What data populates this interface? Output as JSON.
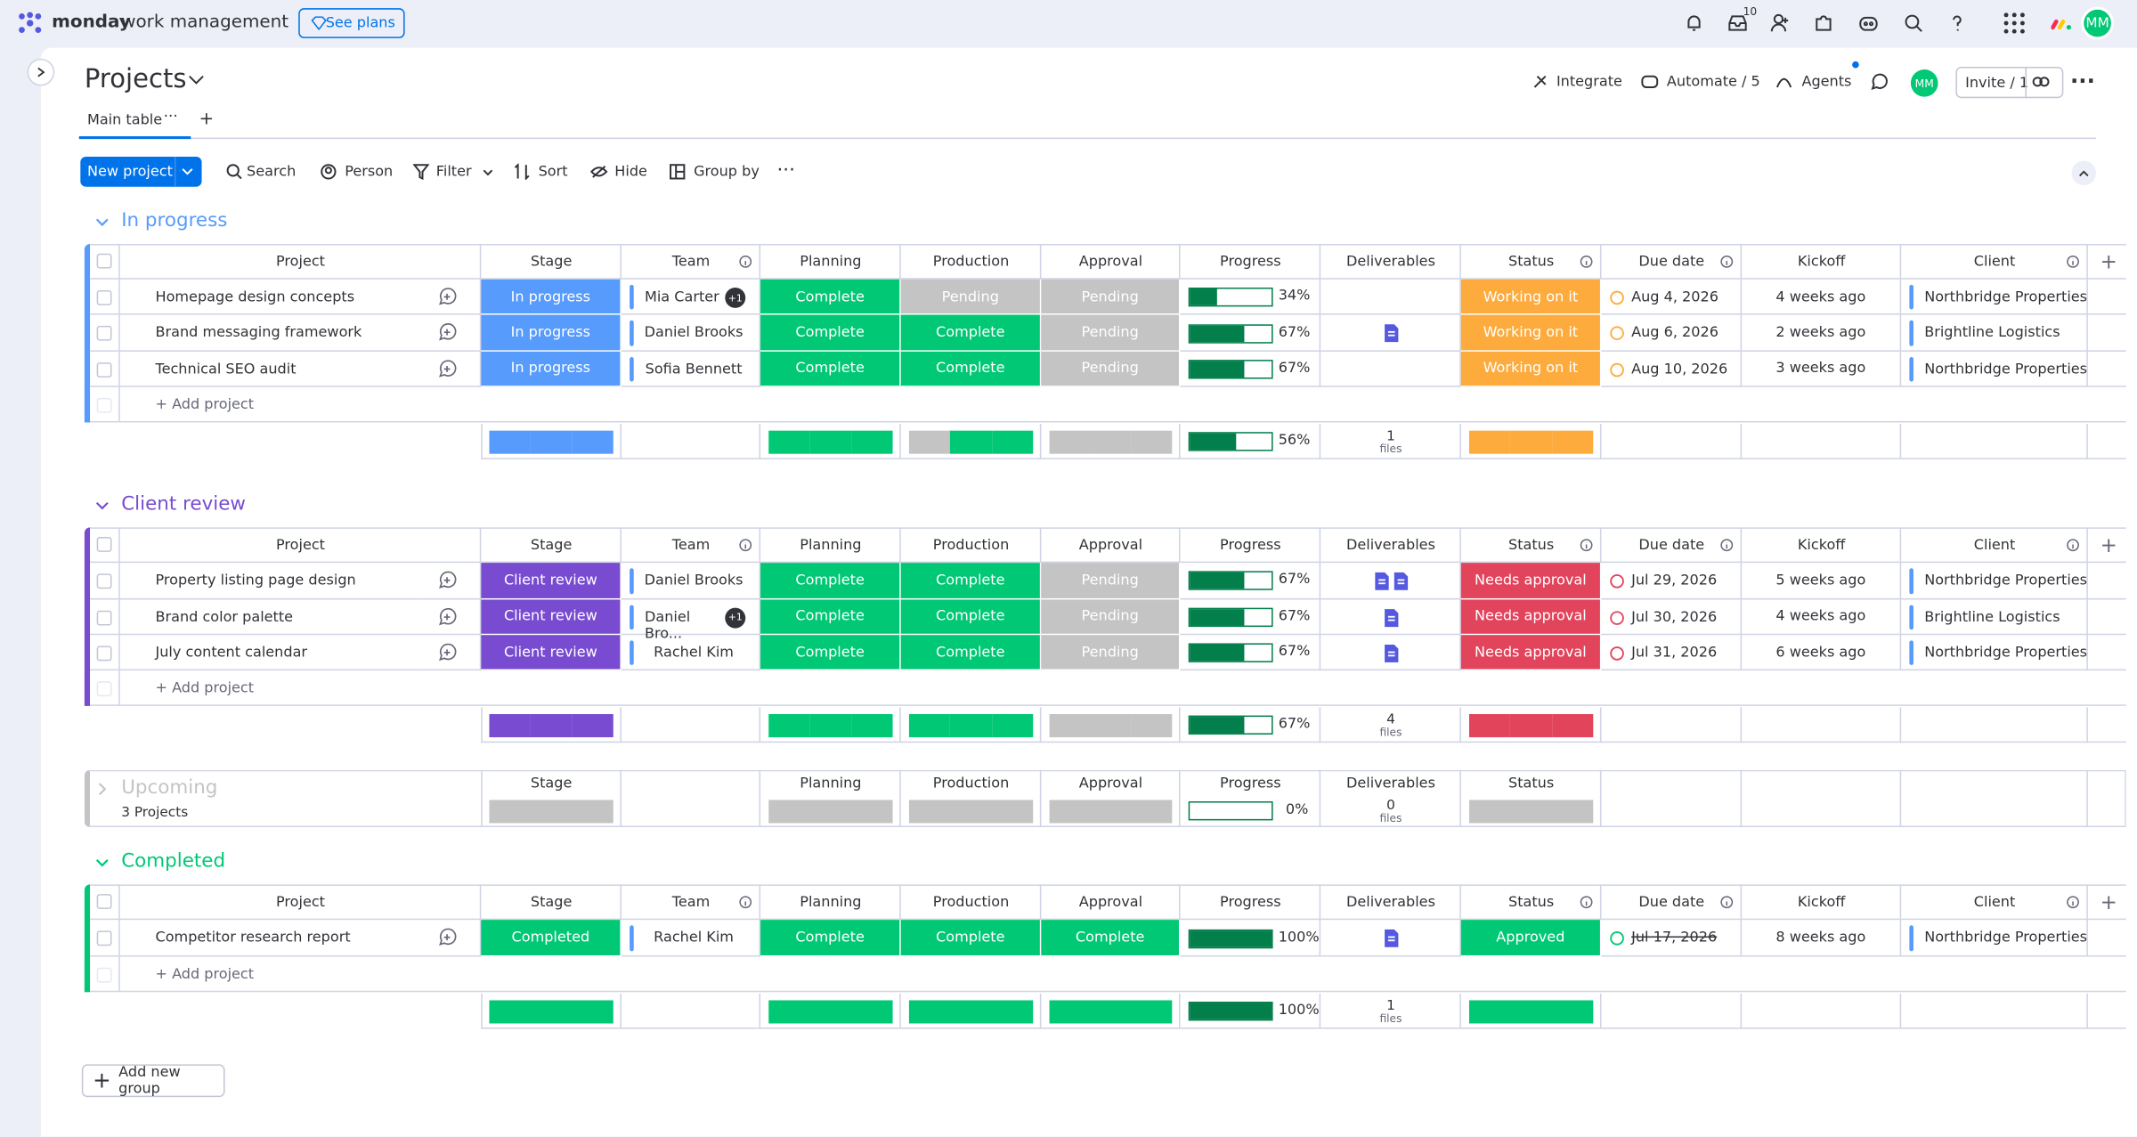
{
  "topbar": {
    "brand": "monday",
    "product": "work management",
    "see_plans": "See plans",
    "inbox_count": 10,
    "avatar": "MM"
  },
  "board": {
    "title": "Projects",
    "tab": "Main table",
    "integrate": "Integrate",
    "automate": "Automate / 5",
    "agents": "Agents",
    "invite": "Invite / 1",
    "avatar": "MM"
  },
  "toolbar": {
    "new_item": "New project",
    "search": "Search",
    "person": "Person",
    "filter": "Filter",
    "sort": "Sort",
    "hide": "Hide",
    "group_by": "Group by"
  },
  "columns": [
    "Project",
    "Stage",
    "Team",
    "Planning",
    "Production",
    "Approval",
    "Progress",
    "Deliverables",
    "Status",
    "Due date",
    "Kickoff",
    "Client"
  ],
  "label_colors": {
    "In progress": "#579bfc",
    "Client review": "#784bd1",
    "Completed": "#00c875",
    "Complete": "#00c875",
    "Pending": "#c4c4c4",
    "Working on it": "#fdab3d",
    "Needs approval": "#e2445c",
    "Approved": "#00c875"
  },
  "groups": [
    {
      "name": "In progress",
      "color": "#579bfc",
      "collapsed": false,
      "add_item": "+ Add project",
      "rows": [
        {
          "project": "Homepage design concepts",
          "stage": "In progress",
          "team": "Mia Carter",
          "team_extra": "+1",
          "planning": "Complete",
          "production": "Pending",
          "approval": "Pending",
          "progress": 34,
          "progress_label": "34%",
          "deliverables": 0,
          "status": "Working on it",
          "due_date": "Aug 4, 2026",
          "kickoff": "4 weeks ago",
          "client": "Northbridge Properties"
        },
        {
          "project": "Brand messaging framework",
          "stage": "In progress",
          "team": "Daniel Brooks",
          "planning": "Complete",
          "production": "Complete",
          "approval": "Pending",
          "progress": 67,
          "progress_label": "67%",
          "deliverables": 1,
          "status": "Working on it",
          "due_date": "Aug 6, 2026",
          "kickoff": "2 weeks ago",
          "client": "Brightline Logistics"
        },
        {
          "project": "Technical SEO audit",
          "stage": "In progress",
          "team": "Sofia Bennett",
          "planning": "Complete",
          "production": "Complete",
          "approval": "Pending",
          "progress": 67,
          "progress_label": "67%",
          "deliverables": 0,
          "status": "Working on it",
          "due_date": "Aug 10, 2026",
          "kickoff": "3 weeks ago",
          "client": "Northbridge Properties"
        }
      ],
      "summary": {
        "progress": 56,
        "progress_label": "56%",
        "files": 1,
        "files_label": "files"
      }
    },
    {
      "name": "Client review",
      "color": "#784bd1",
      "collapsed": false,
      "add_item": "+ Add project",
      "rows": [
        {
          "project": "Property listing page design",
          "stage": "Client review",
          "team": "Daniel Brooks",
          "planning": "Complete",
          "production": "Complete",
          "approval": "Pending",
          "progress": 67,
          "progress_label": "67%",
          "deliverables": 2,
          "status": "Needs approval",
          "due_date": "Jul 29, 2026",
          "kickoff": "5 weeks ago",
          "client": "Northbridge Properties"
        },
        {
          "project": "Brand color palette",
          "stage": "Client review",
          "team": "Daniel Bro...",
          "team_extra": "+1",
          "planning": "Complete",
          "production": "Complete",
          "approval": "Pending",
          "progress": 67,
          "progress_label": "67%",
          "deliverables": 1,
          "status": "Needs approval",
          "due_date": "Jul 30, 2026",
          "kickoff": "4 weeks ago",
          "client": "Brightline Logistics"
        },
        {
          "project": "July content calendar",
          "stage": "Client review",
          "team": "Rachel Kim",
          "planning": "Complete",
          "production": "Complete",
          "approval": "Pending",
          "progress": 67,
          "progress_label": "67%",
          "deliverables": 1,
          "status": "Needs approval",
          "due_date": "Jul 31, 2026",
          "kickoff": "6 weeks ago",
          "client": "Northbridge Properties"
        }
      ],
      "summary": {
        "progress": 67,
        "progress_label": "67%",
        "files": 4,
        "files_label": "files"
      }
    },
    {
      "name": "Upcoming",
      "color": "#c4c4c4",
      "collapsed": true,
      "count_label": "3 Projects",
      "summary": {
        "progress": 0,
        "progress_label": "0%",
        "files": 0,
        "files_label": "files"
      }
    },
    {
      "name": "Completed",
      "color": "#00c875",
      "collapsed": false,
      "add_item": "+ Add project",
      "rows": [
        {
          "project": "Competitor research report",
          "stage": "Completed",
          "team": "Rachel Kim",
          "planning": "Complete",
          "production": "Complete",
          "approval": "Complete",
          "progress": 100,
          "progress_label": "100%",
          "deliverables": 1,
          "status": "Approved",
          "due_date": "Jul 17, 2026",
          "due_struck": true,
          "kickoff": "8 weeks ago",
          "client": "Northbridge Properties"
        }
      ],
      "summary": {
        "progress": 100,
        "progress_label": "100%",
        "files": 1,
        "files_label": "files"
      }
    }
  ],
  "add_group": "Add new group"
}
